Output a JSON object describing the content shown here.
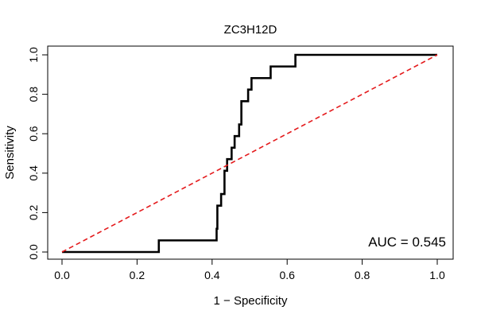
{
  "chart_data": {
    "type": "line",
    "title": "ZC3H12D",
    "xlabel": "1 − Specificity",
    "ylabel": "Sensitivity",
    "xlim": [
      0.0,
      1.0
    ],
    "ylim": [
      0.0,
      1.0
    ],
    "xticks": [
      "0.0",
      "0.2",
      "0.4",
      "0.6",
      "0.8",
      "1.0"
    ],
    "yticks": [
      "0.0",
      "0.2",
      "0.4",
      "0.6",
      "0.8",
      "1.0"
    ],
    "grid": false,
    "series": [
      {
        "name": "ROC curve",
        "color": "#000000",
        "points": [
          [
            0.0,
            0.0
          ],
          [
            0.258,
            0.0
          ],
          [
            0.258,
            0.059
          ],
          [
            0.412,
            0.059
          ],
          [
            0.412,
            0.118
          ],
          [
            0.414,
            0.118
          ],
          [
            0.414,
            0.235
          ],
          [
            0.424,
            0.235
          ],
          [
            0.424,
            0.294
          ],
          [
            0.433,
            0.294
          ],
          [
            0.433,
            0.412
          ],
          [
            0.44,
            0.412
          ],
          [
            0.44,
            0.471
          ],
          [
            0.452,
            0.471
          ],
          [
            0.452,
            0.529
          ],
          [
            0.46,
            0.529
          ],
          [
            0.46,
            0.588
          ],
          [
            0.472,
            0.588
          ],
          [
            0.472,
            0.647
          ],
          [
            0.478,
            0.647
          ],
          [
            0.478,
            0.765
          ],
          [
            0.496,
            0.765
          ],
          [
            0.496,
            0.824
          ],
          [
            0.505,
            0.824
          ],
          [
            0.505,
            0.882
          ],
          [
            0.556,
            0.882
          ],
          [
            0.556,
            0.941
          ],
          [
            0.622,
            0.941
          ],
          [
            0.622,
            1.0
          ],
          [
            1.0,
            1.0
          ]
        ]
      },
      {
        "name": "Chance diagonal",
        "color": "#e41a1c",
        "dashed": true,
        "points": [
          [
            0.0,
            0.0
          ],
          [
            1.0,
            1.0
          ]
        ]
      }
    ],
    "annotation": "AUC = 0.545"
  }
}
